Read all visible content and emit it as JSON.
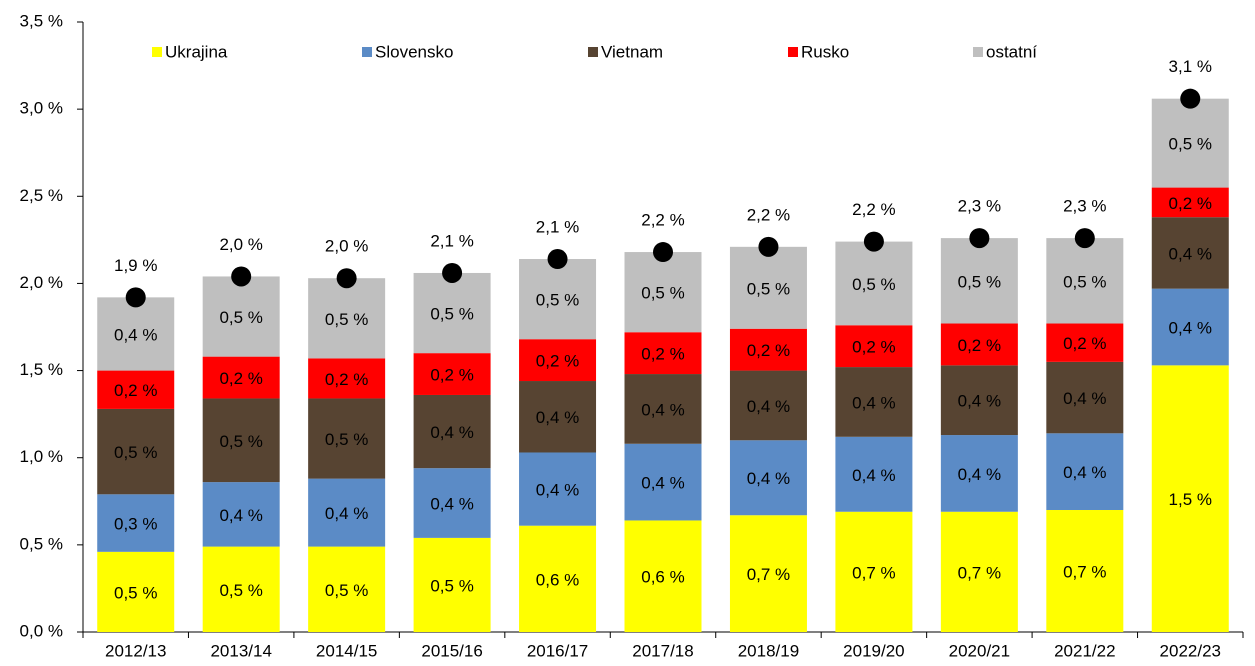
{
  "chart_data": {
    "type": "stacked_bar",
    "categories": [
      "2012/13",
      "2013/14",
      "2014/15",
      "2015/16",
      "2016/17",
      "2017/18",
      "2018/19",
      "2019/20",
      "2020/21",
      "2021/22",
      "2022/23"
    ],
    "series": [
      {
        "name": "Ukrajina",
        "color": "#ffff00",
        "values": [
          0.46,
          0.49,
          0.49,
          0.54,
          0.61,
          0.64,
          0.67,
          0.69,
          0.69,
          0.7,
          1.53
        ],
        "value_labels": [
          "0,5 %",
          "0,5 %",
          "0,5 %",
          "0,5 %",
          "0,6 %",
          "0,6 %",
          "0,7 %",
          "0,7 %",
          "0,7 %",
          "0,7 %",
          "1,5 %"
        ]
      },
      {
        "name": "Slovensko",
        "color": "#5b8bc6",
        "values": [
          0.33,
          0.37,
          0.39,
          0.4,
          0.42,
          0.44,
          0.43,
          0.43,
          0.44,
          0.44,
          0.44
        ],
        "value_labels": [
          "0,3 %",
          "0,4 %",
          "0,4 %",
          "0,4 %",
          "0,4 %",
          "0,4 %",
          "0,4 %",
          "0,4 %",
          "0,4 %",
          "0,4 %",
          "0,4 %"
        ]
      },
      {
        "name": "Vietnam",
        "color": "#574432",
        "values": [
          0.49,
          0.48,
          0.46,
          0.42,
          0.41,
          0.4,
          0.4,
          0.4,
          0.4,
          0.41,
          0.41
        ],
        "value_labels": [
          "0,5 %",
          "0,5 %",
          "0,5 %",
          "0,4 %",
          "0,4 %",
          "0,4 %",
          "0,4 %",
          "0,4 %",
          "0,4 %",
          "0,4 %",
          "0,4 %"
        ]
      },
      {
        "name": "Rusko",
        "color": "#ff0000",
        "values": [
          0.22,
          0.24,
          0.23,
          0.24,
          0.24,
          0.24,
          0.24,
          0.24,
          0.24,
          0.22,
          0.17
        ],
        "value_labels": [
          "0,2 %",
          "0,2 %",
          "0,2 %",
          "0,2 %",
          "0,2 %",
          "0,2 %",
          "0,2 %",
          "0,2 %",
          "0,2 %",
          "0,2 %",
          "0,2 %"
        ]
      },
      {
        "name": "ostatní",
        "color": "#bfbfbf",
        "values": [
          0.42,
          0.46,
          0.46,
          0.46,
          0.46,
          0.46,
          0.47,
          0.48,
          0.49,
          0.49,
          0.51
        ],
        "value_labels": [
          "0,4 %",
          "0,5 %",
          "0,5 %",
          "0,5 %",
          "0,5 %",
          "0,5 %",
          "0,5 %",
          "0,5 %",
          "0,5 %",
          "0,5 %",
          "0,5 %"
        ]
      }
    ],
    "totals": {
      "color": "#000000",
      "values": [
        1.92,
        2.04,
        2.03,
        2.06,
        2.14,
        2.18,
        2.21,
        2.24,
        2.26,
        2.26,
        3.06
      ],
      "value_labels": [
        "1,9 %",
        "2,0 %",
        "2,0 %",
        "2,1 %",
        "2,1 %",
        "2,2 %",
        "2,2 %",
        "2,2 %",
        "2,3 %",
        "2,3 %",
        "3,1 %"
      ]
    },
    "ylim": [
      0,
      3.5
    ],
    "yticks": [
      {
        "value": 0,
        "label": "0,0 %"
      },
      {
        "value": 0.5,
        "label": "0,5 %"
      },
      {
        "value": 1,
        "label": "1,0 %"
      },
      {
        "value": 1.5,
        "label": "1,5 %"
      },
      {
        "value": 2,
        "label": "2,0 %"
      },
      {
        "value": 2.5,
        "label": "2,5 %"
      },
      {
        "value": 3,
        "label": "3,0 %"
      },
      {
        "value": 3.5,
        "label": "3,5 %"
      }
    ],
    "legend": "top"
  }
}
